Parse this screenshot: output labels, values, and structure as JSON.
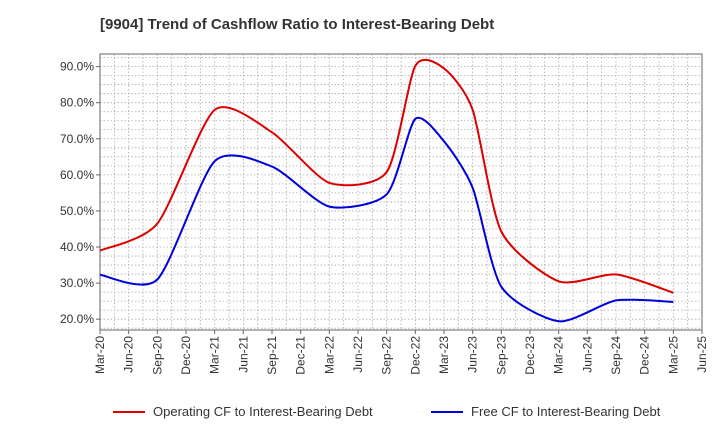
{
  "header": {
    "title": "[9904]  Trend of Cashflow Ratio to Interest-Bearing Debt"
  },
  "colors": {
    "operating": "#dd0000",
    "free": "#0000dd",
    "grid": "#aaaaaa",
    "frame": "#666666"
  },
  "chart_data": {
    "type": "line",
    "title": "[9904]  Trend of Cashflow Ratio to Interest-Bearing Debt",
    "xlabel": "",
    "ylabel": "",
    "x_tick_labels": [
      "Mar-20",
      "Jun-20",
      "Sep-20",
      "Dec-20",
      "Mar-21",
      "Jun-21",
      "Sep-21",
      "Dec-21",
      "Mar-22",
      "Jun-22",
      "Sep-22",
      "Dec-22",
      "Mar-23",
      "Jun-23",
      "Sep-23",
      "Dec-23",
      "Mar-24",
      "Jun-24",
      "Sep-24",
      "Dec-24",
      "Mar-25",
      "Jun-25"
    ],
    "y_ticks": [
      20,
      30,
      40,
      50,
      60,
      70,
      80,
      90
    ],
    "y_tick_labels": [
      "20.0%",
      "30.0%",
      "40.0%",
      "50.0%",
      "60.0%",
      "70.0%",
      "80.0%",
      "90.0%"
    ],
    "ylim": [
      17,
      93.5
    ],
    "grid": true,
    "legend_position": "bottom",
    "series": [
      {
        "name": "Operating CF to Interest-Bearing Debt",
        "color": "#dd0000",
        "x": [
          "Mar-20",
          "Sep-20",
          "Mar-21",
          "Sep-21",
          "Mar-22",
          "Sep-22",
          "Dec-22",
          "Mar-23",
          "Jun-23",
          "Sep-23",
          "Mar-24",
          "Sep-24",
          "Mar-25"
        ],
        "values": [
          39.0,
          46.5,
          78.0,
          71.8,
          57.8,
          60.8,
          90.2,
          89.5,
          78.0,
          44.3,
          30.5,
          32.4,
          27.3
        ]
      },
      {
        "name": "Free CF to Interest-Bearing Debt",
        "color": "#0000dd",
        "x": [
          "Mar-20",
          "Sep-20",
          "Mar-21",
          "Sep-21",
          "Mar-22",
          "Sep-22",
          "Dec-22",
          "Mar-23",
          "Jun-23",
          "Sep-23",
          "Mar-24",
          "Sep-24",
          "Mar-25"
        ],
        "values": [
          32.3,
          31.0,
          63.8,
          62.3,
          51.2,
          54.6,
          75.5,
          69.3,
          56.4,
          29.0,
          19.4,
          25.2,
          24.8
        ]
      }
    ]
  }
}
